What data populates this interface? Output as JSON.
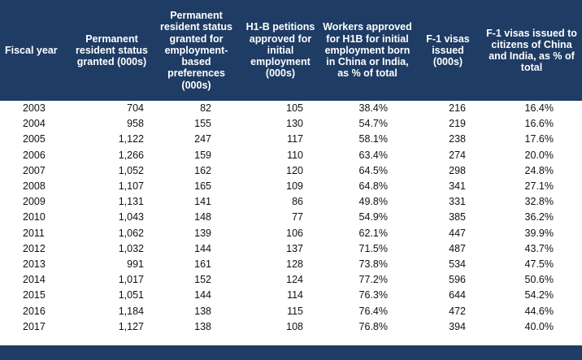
{
  "columns": [
    "Fiscal year",
    "Permanent resident status granted (000s)",
    "Permanent resident status granted for employment-based preferences (000s)",
    "H1-B petitions approved for initial employment (000s)",
    "Workers approved for H1B for initial employment born in China or India, as % of total",
    "F-1 visas issued (000s)",
    "F-1 visas issued to citizens of China and India, as % of total"
  ],
  "rows": [
    [
      "2003",
      "704",
      "82",
      "105",
      "38.4%",
      "216",
      "16.4%"
    ],
    [
      "2004",
      "958",
      "155",
      "130",
      "54.7%",
      "219",
      "16.6%"
    ],
    [
      "2005",
      "1,122",
      "247",
      "117",
      "58.1%",
      "238",
      "17.6%"
    ],
    [
      "2006",
      "1,266",
      "159",
      "110",
      "63.4%",
      "274",
      "20.0%"
    ],
    [
      "2007",
      "1,052",
      "162",
      "120",
      "64.5%",
      "298",
      "24.8%"
    ],
    [
      "2008",
      "1,107",
      "165",
      "109",
      "64.8%",
      "341",
      "27.1%"
    ],
    [
      "2009",
      "1,131",
      "141",
      "86",
      "49.8%",
      "331",
      "32.8%"
    ],
    [
      "2010",
      "1,043",
      "148",
      "77",
      "54.9%",
      "385",
      "36.2%"
    ],
    [
      "2011",
      "1,062",
      "139",
      "106",
      "62.1%",
      "447",
      "39.9%"
    ],
    [
      "2012",
      "1,032",
      "144",
      "137",
      "71.5%",
      "487",
      "43.7%"
    ],
    [
      "2013",
      "991",
      "161",
      "128",
      "73.8%",
      "534",
      "47.5%"
    ],
    [
      "2014",
      "1,017",
      "152",
      "124",
      "77.2%",
      "596",
      "50.6%"
    ],
    [
      "2015",
      "1,051",
      "144",
      "114",
      "76.3%",
      "644",
      "54.2%"
    ],
    [
      "2016",
      "1,184",
      "138",
      "115",
      "76.4%",
      "472",
      "44.6%"
    ],
    [
      "2017",
      "1,127",
      "138",
      "108",
      "76.8%",
      "394",
      "40.0%"
    ]
  ],
  "colors": {
    "header_bg": "#1f3c64",
    "header_text": "#ffffff"
  }
}
